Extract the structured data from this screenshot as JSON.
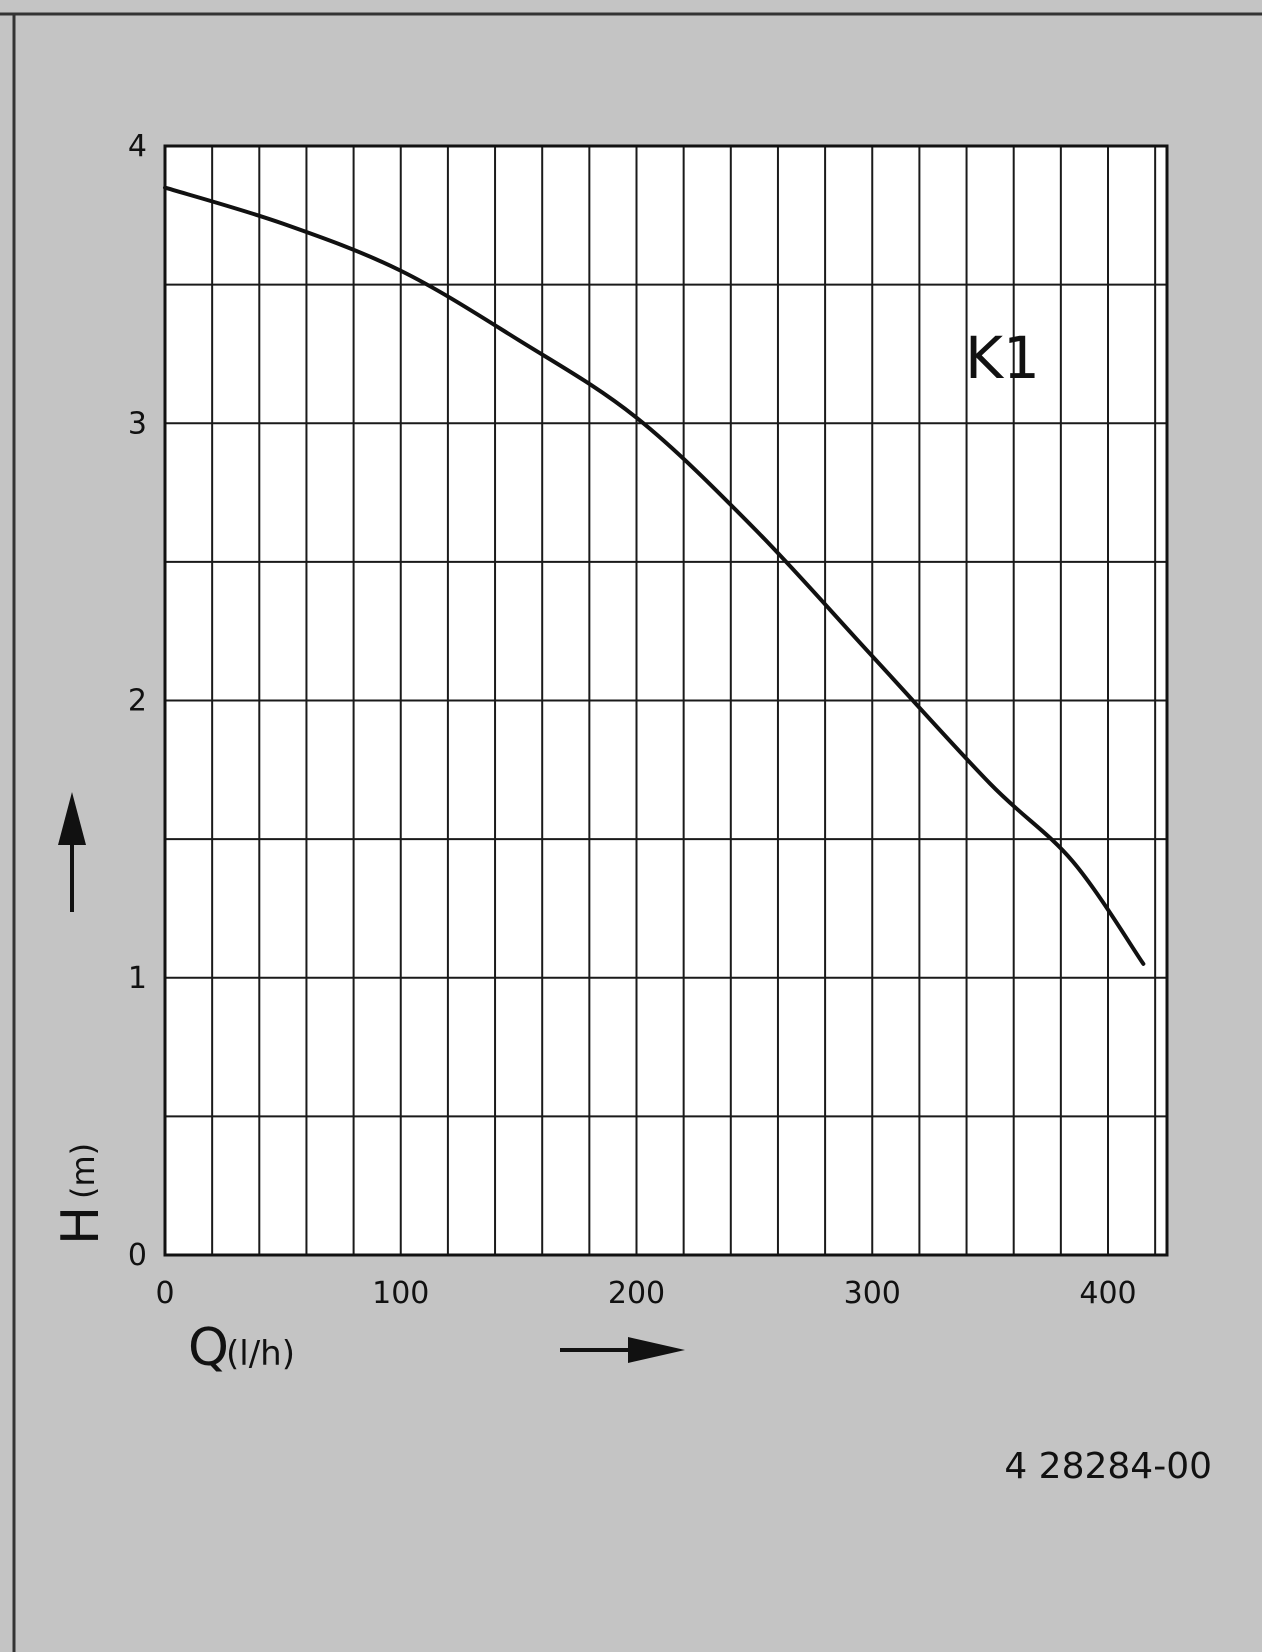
{
  "colors": {
    "panel_background": "#c4c4c4",
    "plot_background": "#ffffff",
    "line": "#111111",
    "grid": "#1a1a1a"
  },
  "chart_data": {
    "type": "line",
    "series": [
      {
        "name": "K1",
        "x": [
          0,
          50,
          100,
          150,
          200,
          250,
          300,
          350,
          385,
          415
        ],
        "y": [
          3.85,
          3.72,
          3.55,
          3.3,
          3.02,
          2.62,
          2.16,
          1.7,
          1.42,
          1.05
        ]
      }
    ],
    "xlabel_symbol": "Q",
    "xlabel_unit": "(l/h)",
    "ylabel_symbol": "H",
    "ylabel_unit": "(m)",
    "xlim": [
      0,
      435
    ],
    "ylim": [
      0,
      4
    ],
    "x_ticks": [
      "0",
      "100",
      "200",
      "300",
      "400"
    ],
    "y_ticks": [
      "0",
      "1",
      "2",
      "3",
      "4"
    ],
    "x_minor_step": 20,
    "y_minor_step": 0.5,
    "grid": true,
    "legend_placement": "top-right",
    "annotation": "4 28284-00"
  }
}
